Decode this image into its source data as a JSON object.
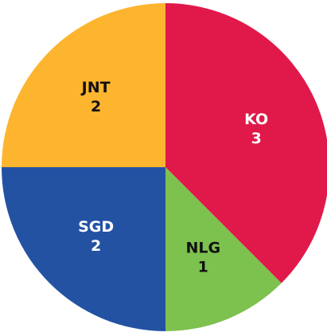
{
  "chart_data": {
    "type": "pie",
    "categories": [
      "KO",
      "NLG",
      "SGD",
      "JNT"
    ],
    "values": [
      3,
      1,
      2,
      2
    ],
    "colors": [
      "#e0194a",
      "#7dc14e",
      "#2352a3",
      "#fdb52f"
    ]
  }
}
